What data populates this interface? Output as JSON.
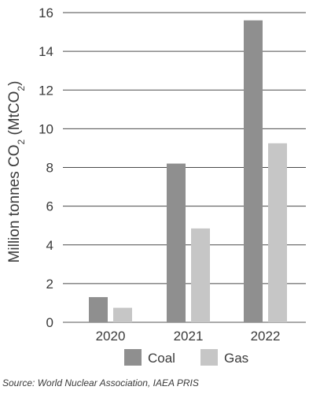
{
  "chart_data": {
    "type": "bar",
    "categories": [
      "2020",
      "2021",
      "2022"
    ],
    "series": [
      {
        "name": "Coal",
        "values": [
          1.3,
          8.2,
          15.6
        ],
        "color": "#8f8f8f"
      },
      {
        "name": "Gas",
        "values": [
          0.75,
          4.85,
          9.25
        ],
        "color": "#c6c6c6"
      }
    ],
    "ylim": [
      0,
      16
    ],
    "yticks": [
      "0",
      "2",
      "4",
      "6",
      "8",
      "10",
      "12",
      "14",
      "16"
    ],
    "ylabel": {
      "main": "Million tonnes CO",
      "sub1": "2",
      "mid": " (MtCO",
      "sub2": "2",
      "end": ")"
    },
    "xlabel": "",
    "title": "",
    "grid": true,
    "legend_position": "bottom"
  },
  "source": "Source: World Nuclear Association, IAEA PRIS"
}
